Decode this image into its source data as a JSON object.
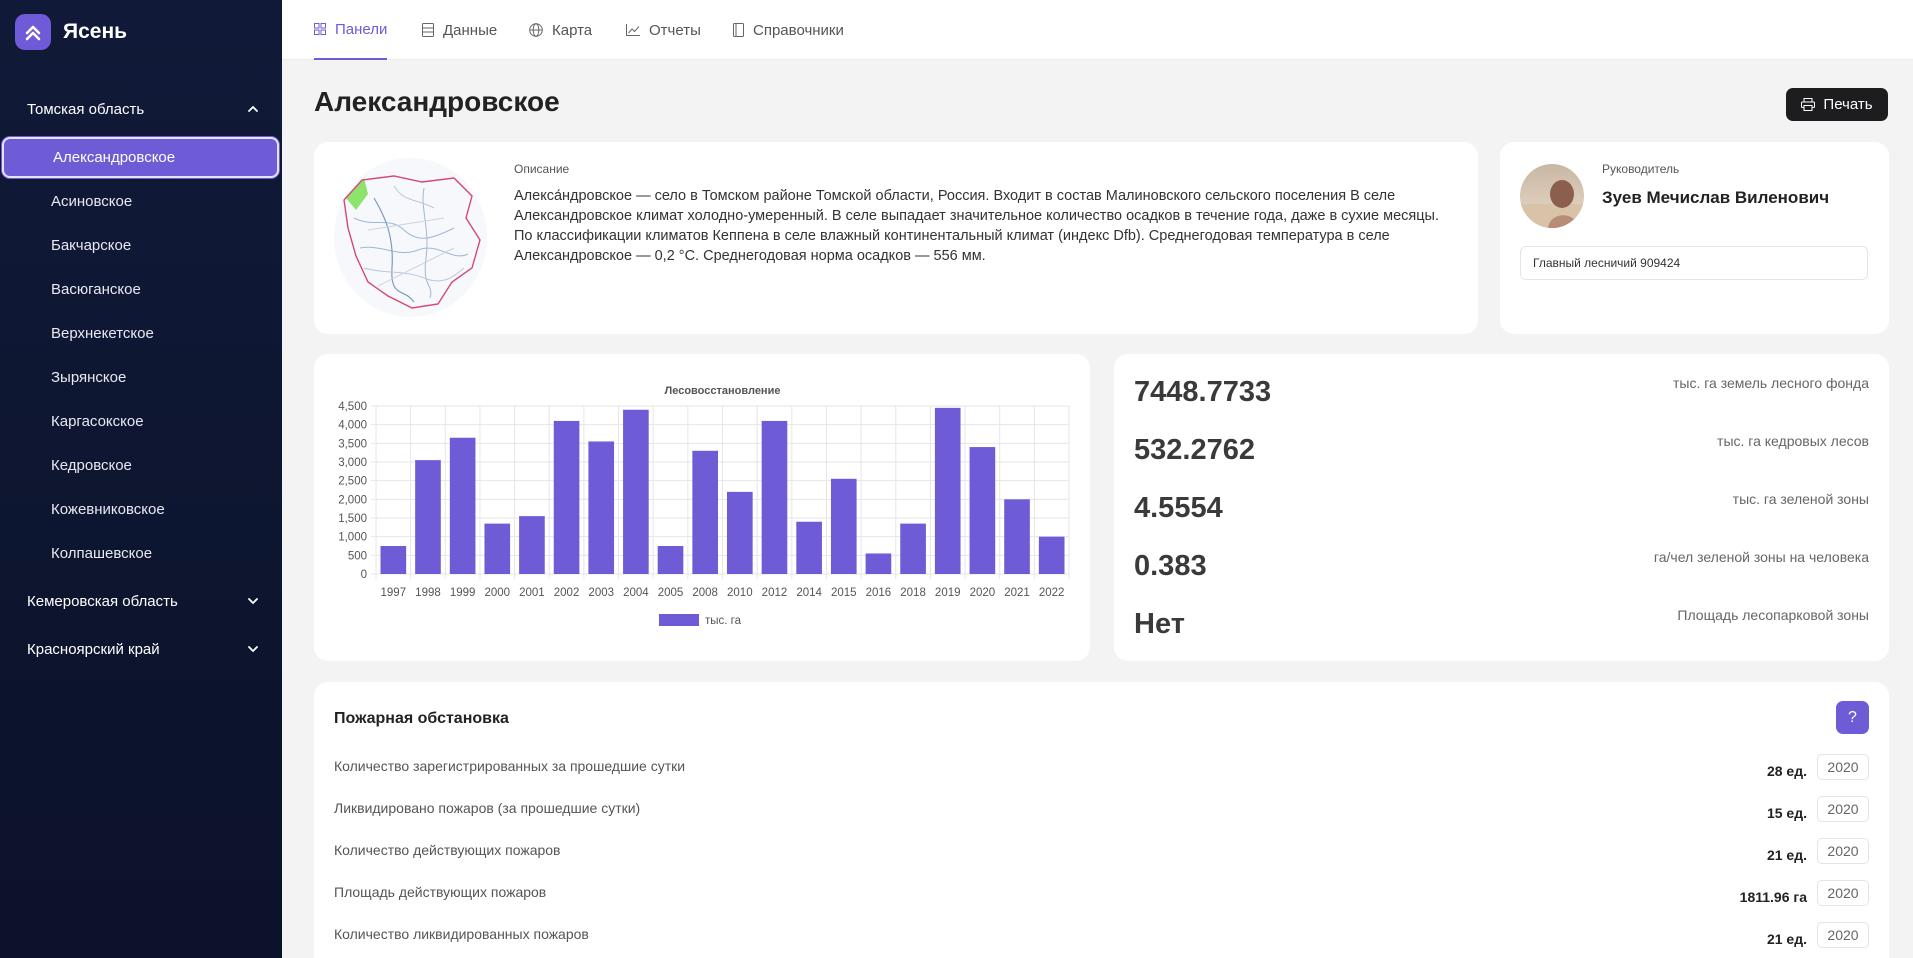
{
  "brand": {
    "name": "Ясень",
    "icon": "chevrons-up-icon"
  },
  "sidebar": {
    "regions": [
      {
        "label": "Томская область",
        "expanded": true
      },
      {
        "label": "Кемеровская область",
        "expanded": false
      },
      {
        "label": "Красноярский край",
        "expanded": false
      }
    ],
    "items": [
      {
        "label": "Александровское",
        "active": true
      },
      {
        "label": "Асиновское"
      },
      {
        "label": "Бакчарское"
      },
      {
        "label": "Васюганское"
      },
      {
        "label": "Верхнекетское"
      },
      {
        "label": "Зырянское"
      },
      {
        "label": "Каргасокское"
      },
      {
        "label": "Кедровское"
      },
      {
        "label": "Кожевниковское"
      },
      {
        "label": "Колпашевское"
      }
    ]
  },
  "topnav": {
    "tabs": [
      {
        "label": "Панели",
        "icon": "grid-icon",
        "active": true
      },
      {
        "label": "Данные",
        "icon": "database-icon"
      },
      {
        "label": "Карта",
        "icon": "globe-icon"
      },
      {
        "label": "Отчеты",
        "icon": "chart-line-icon"
      },
      {
        "label": "Справочники",
        "icon": "book-icon"
      }
    ]
  },
  "page": {
    "title": "Александровское",
    "print_label": "Печать"
  },
  "description": {
    "label": "Описание",
    "text": "Алекса́ндровское — село в Томском районе Томской области, Россия. Входит в состав Малиновского сельского поселения В селе Александровское климат холодно-умеренный. В селе выпадает значительное количество осадков в течение года, даже в сухие месяцы. По классификации климатов Кеппена в селе влажный континентальный климат (индекс Dfb). Среднегодовая температура в селе Александровское — 0,2 °C. Среднегодовая норма осадков — 556 мм."
  },
  "head": {
    "label": "Руководитель",
    "name": "Зуев Мечислав Виленович",
    "position": "Главный лесничий 909424"
  },
  "chart_data": {
    "type": "bar",
    "title": "Лесовосстановление",
    "categories": [
      "1997",
      "1998",
      "1999",
      "2000",
      "2001",
      "2002",
      "2003",
      "2004",
      "2005",
      "2008",
      "2010",
      "2012",
      "2014",
      "2015",
      "2016",
      "2018",
      "2019",
      "2020",
      "2021",
      "2022"
    ],
    "values": [
      750,
      3050,
      3650,
      1350,
      1550,
      4100,
      3550,
      4400,
      750,
      3300,
      2200,
      4100,
      1400,
      2550,
      550,
      1350,
      4450,
      3400,
      2000,
      1000
    ],
    "legend": "тыс. га",
    "ylim": [
      0,
      4500
    ],
    "yticks": [
      "0",
      "500",
      "1,000",
      "1,500",
      "2,000",
      "2,500",
      "3,000",
      "3,500",
      "4,000",
      "4,500"
    ],
    "color": "#6e5bd6"
  },
  "stats": [
    {
      "value": "7448.7733",
      "label": "тыс. га земель лесного фонда"
    },
    {
      "value": "532.2762",
      "label": "тыс. га кедровых лесов"
    },
    {
      "value": "4.5554",
      "label": "тыс. га зеленой зоны"
    },
    {
      "value": "0.383",
      "label": "га/чел зеленой зоны на человека"
    },
    {
      "value": "Нет",
      "label": "Площадь лесопарковой зоны"
    }
  ],
  "fire": {
    "title": "Пожарная обстановка",
    "help": "?",
    "rows": [
      {
        "label": "Количество зарегистрированных за прошедшие сутки",
        "value": "28 ед.",
        "year": "2020"
      },
      {
        "label": "Ликвидировано пожаров (за прошедшие сутки)",
        "value": "15 ед.",
        "year": "2020"
      },
      {
        "label": "Количество действующих пожаров",
        "value": "21 ед.",
        "year": "2020"
      },
      {
        "label": "Площадь действующих пожаров",
        "value": "1811.96 га",
        "year": "2020"
      },
      {
        "label": "Количество ликвидированных пожаров",
        "value": "21 ед.",
        "year": "2020"
      }
    ]
  },
  "colors": {
    "accent": "#6e5bd6",
    "sidebar": "#0e1530"
  }
}
